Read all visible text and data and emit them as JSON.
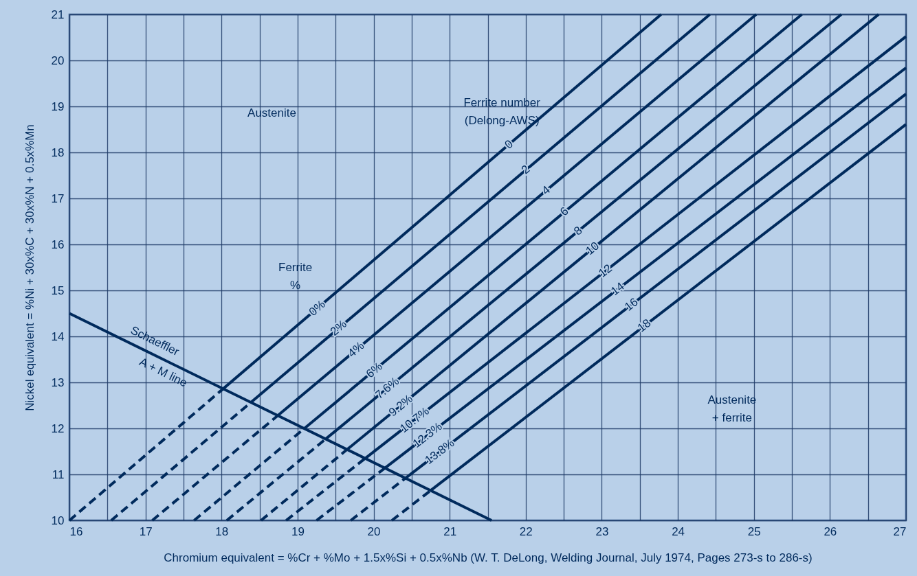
{
  "chart_data": {
    "type": "line",
    "xlabel": "Chromium equivalent = %Cr + %Mo + 1.5x%Si + 0.5x%Nb (W. T. DeLong, Welding Journal, July 1974, Pages 273-s to 286-s)",
    "ylabel": "Nickel equivalent = %Ni + 30x%C + 30x%N + 0.5x%Mn",
    "xlim": [
      16,
      27
    ],
    "ylim": [
      10,
      21
    ],
    "xticks": [
      16,
      {
        "value": 16.5,
        "label": null
      },
      17,
      {
        "value": 17.5,
        "label": null
      },
      18,
      {
        "value": 18.5,
        "label": null
      },
      19,
      {
        "value": 19.5,
        "label": null
      },
      20,
      {
        "value": 20.5,
        "label": null
      },
      21,
      {
        "value": 21.5,
        "label": null
      },
      22,
      {
        "value": 22.5,
        "label": null
      },
      23,
      {
        "value": 23.5,
        "label": null
      },
      24,
      {
        "value": 24.5,
        "label": null
      },
      25,
      {
        "value": 25.5,
        "label": null
      },
      26,
      {
        "value": 26.5,
        "label": null
      },
      27
    ],
    "yticks": [
      10,
      11,
      12,
      13,
      14,
      15,
      16,
      17,
      18,
      19,
      20,
      21
    ],
    "grid": true,
    "marker": "none",
    "series": [
      {
        "color": "#002a5c",
        "line_style": "dashed",
        "x": [
          16.0,
          18.02
        ],
        "values": [
          10,
          12.86
        ]
      },
      {
        "color": "#002a5c",
        "line_style": "solid",
        "x": [
          18.02,
          23.78
        ],
        "values": [
          12.86,
          21
        ]
      },
      {
        "color": "#002a5c",
        "line_style": "dashed",
        "x": [
          16.55,
          18.39
        ],
        "values": [
          10,
          12.57
        ]
      },
      {
        "color": "#002a5c",
        "line_style": "solid",
        "x": [
          18.39,
          24.42
        ],
        "values": [
          12.57,
          21
        ]
      },
      {
        "color": "#002a5c",
        "line_style": "dashed",
        "x": [
          17.09,
          18.74
        ],
        "values": [
          10,
          12.28
        ]
      },
      {
        "color": "#002a5c",
        "line_style": "solid",
        "x": [
          18.74,
          25.03
        ],
        "values": [
          12.28,
          21
        ]
      },
      {
        "color": "#002a5c",
        "line_style": "dashed",
        "x": [
          17.64,
          19.09
        ],
        "values": [
          10,
          12.0
        ]
      },
      {
        "color": "#002a5c",
        "line_style": "solid",
        "x": [
          19.09,
          25.63
        ],
        "values": [
          12.0,
          21
        ]
      },
      {
        "color": "#002a5c",
        "line_style": "dashed",
        "x": [
          18.07,
          19.37
        ],
        "values": [
          10,
          11.77
        ]
      },
      {
        "color": "#002a5c",
        "line_style": "solid",
        "x": [
          19.37,
          26.15
        ],
        "values": [
          11.77,
          21
        ]
      },
      {
        "color": "#002a5c",
        "line_style": "dashed",
        "x": [
          18.52,
          19.65
        ],
        "values": [
          10,
          11.54
        ]
      },
      {
        "color": "#002a5c",
        "line_style": "solid",
        "x": [
          19.65,
          26.64
        ],
        "values": [
          11.54,
          21
        ]
      },
      {
        "color": "#002a5c",
        "line_style": "dashed",
        "x": [
          18.85,
          19.89
        ],
        "values": [
          10,
          11.35
        ]
      },
      {
        "color": "#002a5c",
        "line_style": "solid",
        "x": [
          19.89,
          27
        ],
        "values": [
          11.35,
          20.52
        ]
      },
      {
        "color": "#002a5c",
        "line_style": "dashed",
        "x": [
          19.25,
          20.15
        ],
        "values": [
          10,
          11.14
        ]
      },
      {
        "color": "#002a5c",
        "line_style": "solid",
        "x": [
          20.15,
          27
        ],
        "values": [
          11.14,
          19.84
        ]
      },
      {
        "color": "#002a5c",
        "line_style": "dashed",
        "x": [
          19.7,
          20.42
        ],
        "values": [
          10,
          10.92
        ]
      },
      {
        "color": "#002a5c",
        "line_style": "solid",
        "x": [
          20.42,
          27
        ],
        "values": [
          10.92,
          19.27
        ]
      },
      {
        "color": "#002a5c",
        "line_style": "dashed",
        "x": [
          20.24,
          20.75
        ],
        "values": [
          10,
          10.65
        ]
      },
      {
        "color": "#002a5c",
        "line_style": "solid",
        "x": [
          20.75,
          27
        ],
        "values": [
          10.65,
          18.61
        ]
      },
      {
        "color": "#002a5c",
        "line_style": "solid",
        "x": [
          16,
          21.55
        ],
        "values": [
          14.5,
          10
        ]
      }
    ],
    "annotations": [
      {
        "text": "0",
        "x": 21.78,
        "y": 18.17
      },
      {
        "text": "2",
        "x": 22.0,
        "y": 17.62
      },
      {
        "text": "4",
        "x": 22.27,
        "y": 17.17
      },
      {
        "text": "6",
        "x": 22.51,
        "y": 16.71
      },
      {
        "text": "8",
        "x": 22.69,
        "y": 16.29
      },
      {
        "text": "10",
        "x": 22.88,
        "y": 15.91
      },
      {
        "text": "12",
        "x": 23.05,
        "y": 15.42
      },
      {
        "text": "14",
        "x": 23.21,
        "y": 15.03
      },
      {
        "text": "16",
        "x": 23.39,
        "y": 14.69
      },
      {
        "text": "18",
        "x": 23.56,
        "y": 14.23
      },
      {
        "text": "0%",
        "x": 19.26,
        "y": 14.61
      },
      {
        "text": "2%",
        "x": 19.54,
        "y": 14.18
      },
      {
        "text": "4%",
        "x": 19.77,
        "y": 13.71
      },
      {
        "text": "6%",
        "x": 20.01,
        "y": 13.26
      },
      {
        "text": "7.6%",
        "x": 20.18,
        "y": 12.87
      },
      {
        "text": "9.2%",
        "x": 20.36,
        "y": 12.49
      },
      {
        "text": "10.7%",
        "x": 20.54,
        "y": 12.18
      },
      {
        "text": "12.3%",
        "x": 20.71,
        "y": 11.85
      },
      {
        "text": "13.8%",
        "x": 20.87,
        "y": 11.49
      },
      "Schaeffler",
      "A + M line",
      "Austenite",
      "Ferrite number\n(Delong-AWS)",
      "Ferrite\n%",
      "Austenite\n+ ferrite"
    ]
  }
}
